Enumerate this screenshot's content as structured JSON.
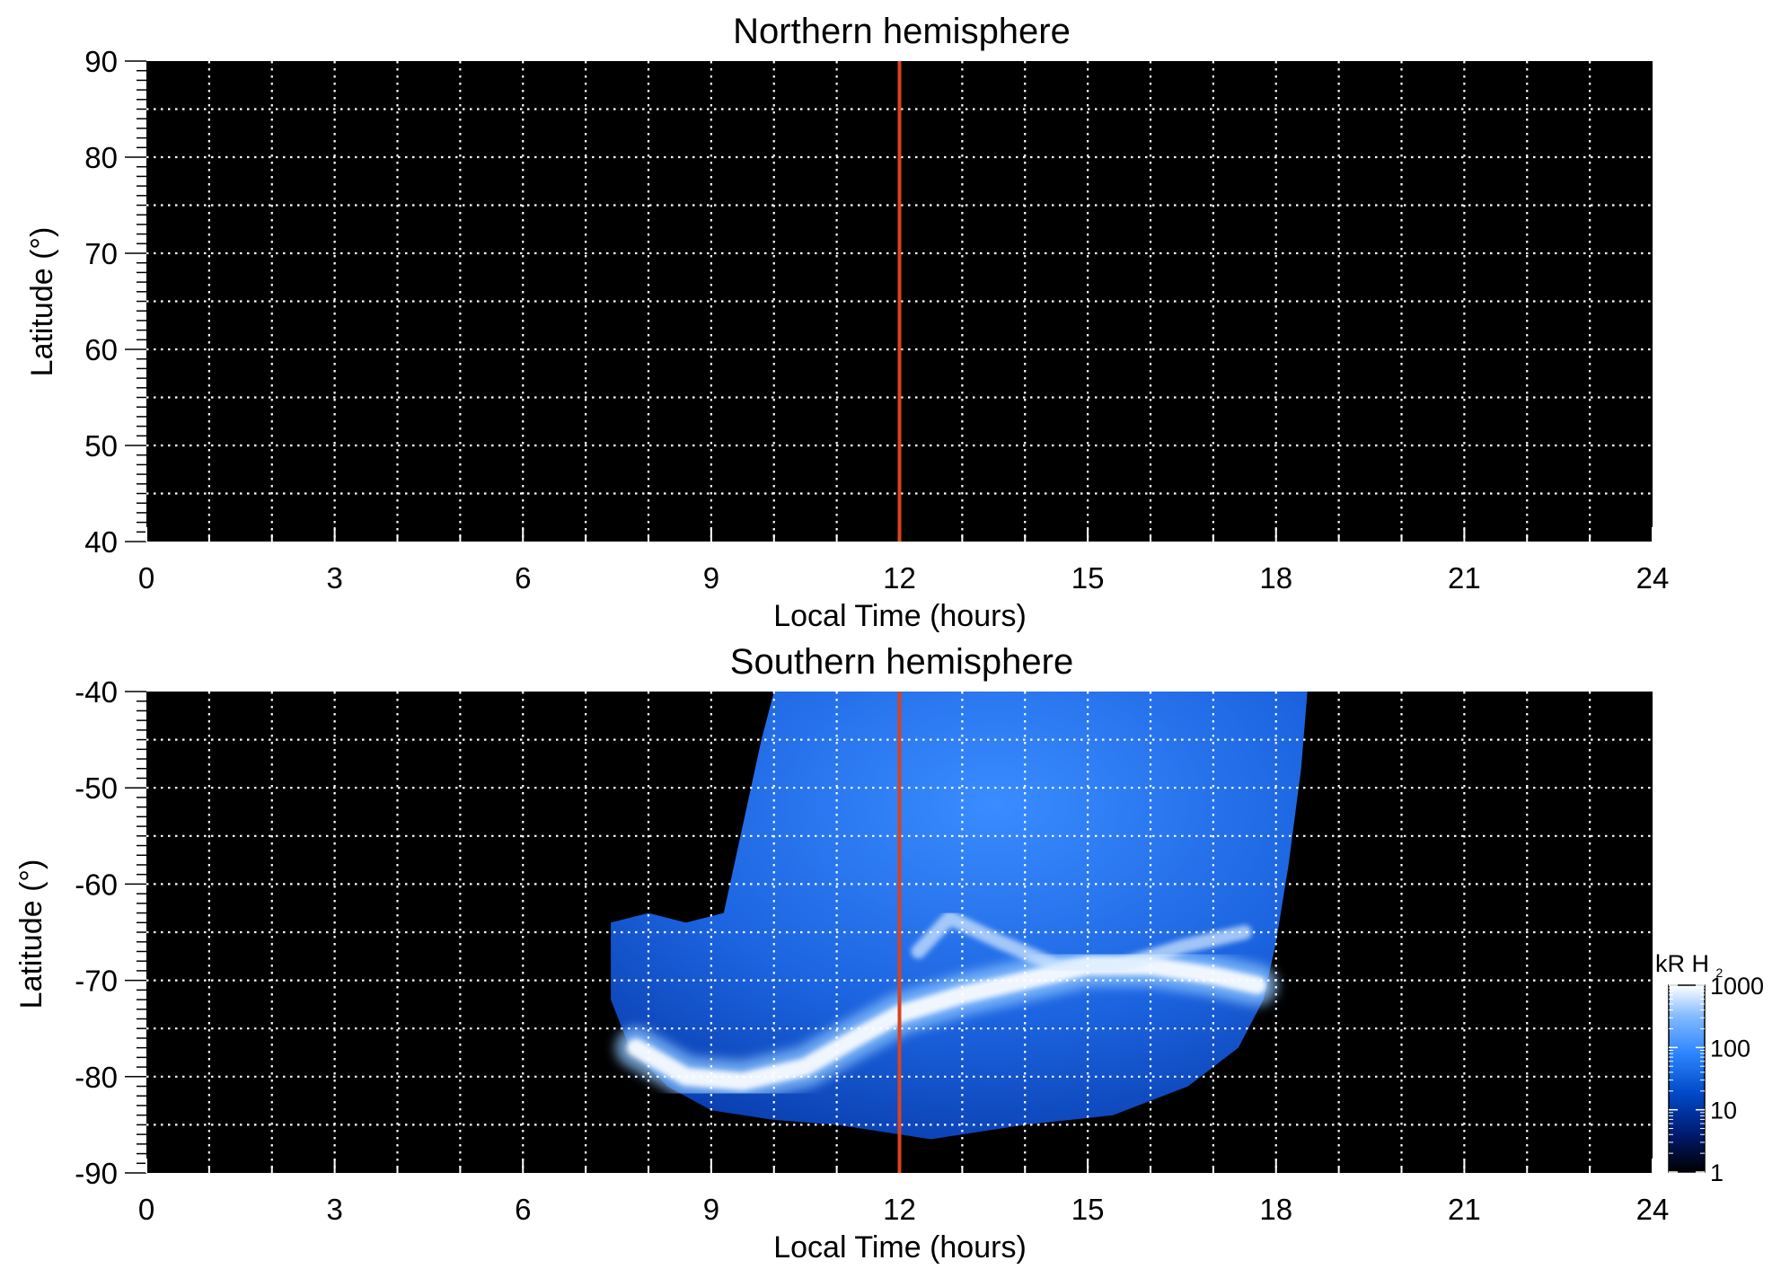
{
  "chart_data": [
    {
      "type": "heatmap",
      "title": "Northern hemisphere",
      "xlabel": "Local Time (hours)",
      "ylabel": "Latitude (°)",
      "xlim": [
        0,
        24
      ],
      "ylim": [
        40,
        90
      ],
      "xticks": [
        "0",
        "3",
        "6",
        "9",
        "12",
        "15",
        "18",
        "21",
        "24"
      ],
      "yticks": [
        "40",
        "50",
        "60",
        "70",
        "80",
        "90"
      ],
      "grid": true,
      "marker_line_x": 12,
      "emission": "none",
      "colors": {
        "background": "#000000",
        "grid": "#ffffff",
        "marker": "#d9441c"
      }
    },
    {
      "type": "heatmap",
      "title": "Southern hemisphere",
      "xlabel": "Local Time (hours)",
      "ylabel": "Latitude (°)",
      "xlim": [
        0,
        24
      ],
      "ylim": [
        -90,
        -40
      ],
      "xticks": [
        "0",
        "3",
        "6",
        "9",
        "12",
        "15",
        "18",
        "21",
        "24"
      ],
      "yticks": [
        "-90",
        "-80",
        "-70",
        "-60",
        "-50",
        "-40"
      ],
      "grid": true,
      "marker_line_x": 12,
      "coverage_region": [
        [
          10.0,
          -40
        ],
        [
          18.5,
          -40
        ],
        [
          18.4,
          -48
        ],
        [
          18.2,
          -58
        ],
        [
          18.0,
          -66
        ],
        [
          17.8,
          -72
        ],
        [
          17.4,
          -77
        ],
        [
          16.6,
          -81
        ],
        [
          15.4,
          -84
        ],
        [
          14.0,
          -85
        ],
        [
          12.5,
          -86.5
        ],
        [
          11.0,
          -85
        ],
        [
          10.0,
          -84.5
        ],
        [
          9.0,
          -83.5
        ],
        [
          8.3,
          -81
        ],
        [
          7.7,
          -77
        ],
        [
          7.4,
          -72
        ],
        [
          7.4,
          -64
        ],
        [
          8.0,
          -63
        ],
        [
          8.6,
          -64
        ],
        [
          9.2,
          -63
        ],
        [
          9.4,
          -57
        ],
        [
          9.6,
          -51
        ],
        [
          9.8,
          -45
        ]
      ],
      "auroral_oval": [
        [
          7.8,
          -77
        ],
        [
          8.6,
          -80
        ],
        [
          9.5,
          -80.5
        ],
        [
          10.5,
          -79
        ],
        [
          11.3,
          -76
        ],
        [
          12.0,
          -73.5
        ],
        [
          13.0,
          -71.5
        ],
        [
          14.0,
          -70
        ],
        [
          15.0,
          -68.5
        ],
        [
          16.0,
          -68.5
        ],
        [
          17.0,
          -69.5
        ],
        [
          17.7,
          -70.5
        ]
      ],
      "secondary_arc": [
        [
          12.3,
          -67
        ],
        [
          12.8,
          -63.5
        ],
        [
          13.6,
          -66
        ],
        [
          14.5,
          -68.5
        ],
        [
          15.5,
          -68.5
        ],
        [
          16.5,
          -66.5
        ],
        [
          17.5,
          -65
        ]
      ],
      "colorbar": {
        "title": "kR H",
        "title_subscript": "2",
        "scale": "log",
        "range": [
          1,
          1000
        ],
        "ticks": [
          "1",
          "10",
          "100",
          "1000"
        ],
        "colors": [
          "#000000",
          "#001a6e",
          "#0049c8",
          "#2f86ff",
          "#86bcff",
          "#ffffff"
        ]
      },
      "colors": {
        "background": "#000000",
        "grid": "#ffffff",
        "marker": "#d9441c"
      }
    }
  ]
}
